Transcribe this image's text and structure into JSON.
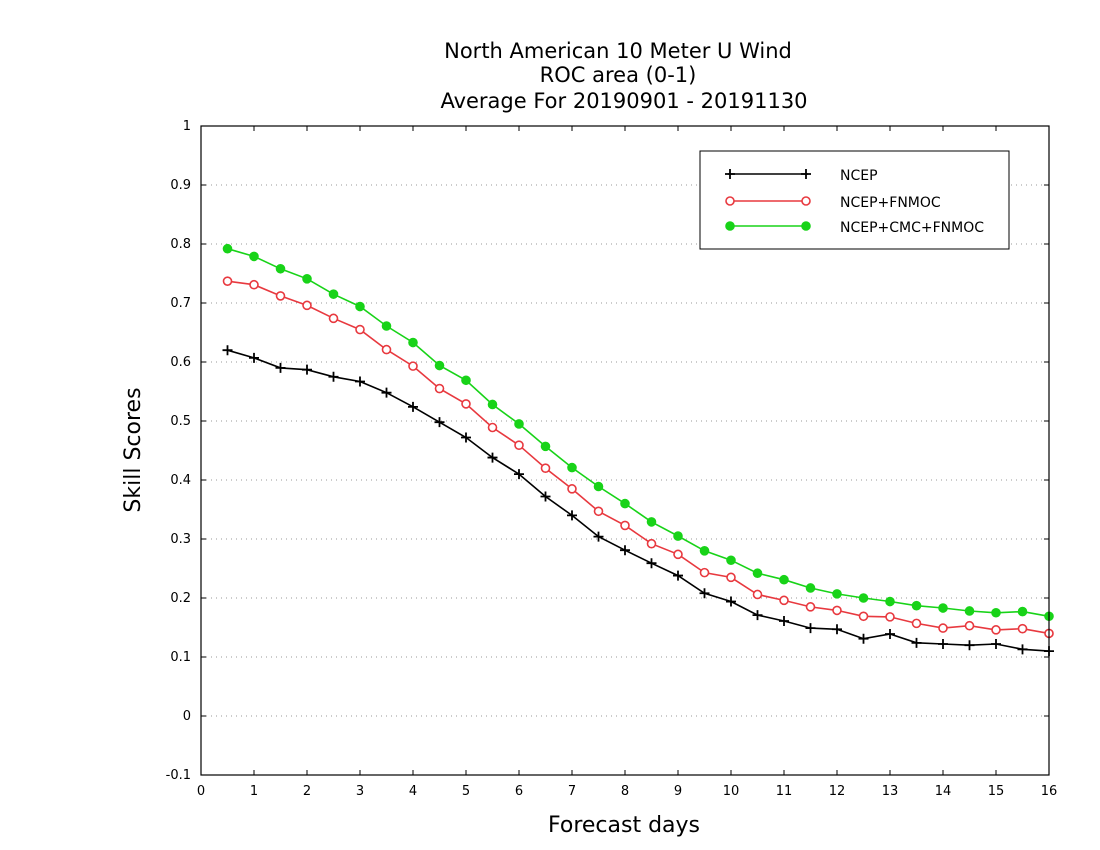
{
  "chart_data": {
    "type": "line",
    "title": [
      "North American 10 Meter U Wind",
      "ROC area (0-1)",
      "Average For 20190901 - 20191130"
    ],
    "xlabel": "Forecast days",
    "ylabel": "Skill Scores",
    "xlim": [
      0,
      16
    ],
    "ylim": [
      -0.1,
      1
    ],
    "xticks": [
      "0",
      "1",
      "2",
      "3",
      "4",
      "5",
      "6",
      "7",
      "8",
      "9",
      "10",
      "11",
      "12",
      "13",
      "14",
      "15",
      "16"
    ],
    "yticks": [
      "-0.1",
      "0",
      "0.1",
      "0.2",
      "0.3",
      "0.4",
      "0.5",
      "0.6",
      "0.7",
      "0.8",
      "0.9",
      "1"
    ],
    "grid": "horizontal dotted",
    "legend_position": "top-right",
    "x": [
      0.5,
      1,
      1.5,
      2,
      2.5,
      3,
      3.5,
      4,
      4.5,
      5,
      5.5,
      6,
      6.5,
      7,
      7.5,
      8,
      8.5,
      9,
      9.5,
      10,
      10.5,
      11,
      11.5,
      12,
      12.5,
      13,
      13.5,
      14,
      14.5,
      15,
      15.5,
      16
    ],
    "series": [
      {
        "name": "NCEP",
        "color": "#000000",
        "marker": "plus",
        "values": [
          0.62,
          0.607,
          0.59,
          0.587,
          0.575,
          0.567,
          0.548,
          0.524,
          0.498,
          0.472,
          0.438,
          0.41,
          0.372,
          0.34,
          0.304,
          0.281,
          0.259,
          0.238,
          0.208,
          0.194,
          0.171,
          0.161,
          0.149,
          0.147,
          0.131,
          0.139,
          0.124,
          0.122,
          0.12,
          0.122,
          0.113,
          0.11
        ]
      },
      {
        "name": "NCEP+FNMOC",
        "color": "#e8393f",
        "marker": "open-circle",
        "values": [
          0.737,
          0.731,
          0.712,
          0.696,
          0.674,
          0.655,
          0.621,
          0.593,
          0.555,
          0.529,
          0.489,
          0.459,
          0.42,
          0.385,
          0.347,
          0.323,
          0.292,
          0.274,
          0.243,
          0.235,
          0.206,
          0.196,
          0.185,
          0.179,
          0.169,
          0.168,
          0.157,
          0.149,
          0.153,
          0.146,
          0.148,
          0.14
        ]
      },
      {
        "name": "NCEP+CMC+FNMOC",
        "color": "#18d318",
        "marker": "filled-circle",
        "values": [
          0.792,
          0.779,
          0.758,
          0.741,
          0.715,
          0.694,
          0.661,
          0.633,
          0.594,
          0.569,
          0.528,
          0.495,
          0.457,
          0.421,
          0.389,
          0.36,
          0.329,
          0.305,
          0.28,
          0.264,
          0.242,
          0.231,
          0.217,
          0.207,
          0.2,
          0.194,
          0.187,
          0.183,
          0.178,
          0.175,
          0.177,
          0.169
        ]
      }
    ]
  }
}
